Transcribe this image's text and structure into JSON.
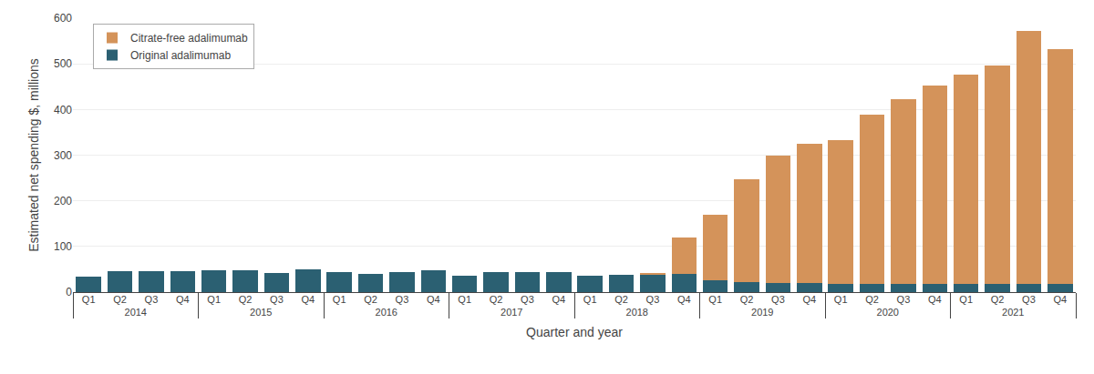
{
  "chart_data": {
    "type": "bar",
    "stacked": true,
    "categories": [
      "Q1",
      "Q2",
      "Q3",
      "Q4",
      "Q1",
      "Q2",
      "Q3",
      "Q4",
      "Q1",
      "Q2",
      "Q3",
      "Q4",
      "Q1",
      "Q2",
      "Q3",
      "Q4",
      "Q1",
      "Q2",
      "Q3",
      "Q4",
      "Q1",
      "Q2",
      "Q3",
      "Q4",
      "Q1",
      "Q2",
      "Q3",
      "Q4",
      "Q1",
      "Q2",
      "Q3",
      "Q4"
    ],
    "groups": [
      "2014",
      "2014",
      "2014",
      "2014",
      "2015",
      "2015",
      "2015",
      "2015",
      "2016",
      "2016",
      "2016",
      "2016",
      "2017",
      "2017",
      "2017",
      "2017",
      "2018",
      "2018",
      "2018",
      "2018",
      "2019",
      "2019",
      "2019",
      "2019",
      "2020",
      "2020",
      "2020",
      "2020",
      "2021",
      "2021",
      "2021",
      "2021"
    ],
    "series": [
      {
        "name": "Original adalimumab",
        "color": "#2b6072",
        "values": [
          33,
          45,
          46,
          45,
          48,
          47,
          42,
          49,
          44,
          40,
          43,
          47,
          36,
          44,
          43,
          43,
          36,
          37,
          37,
          40,
          25,
          22,
          20,
          20,
          18,
          18,
          18,
          18,
          17,
          17,
          17,
          17
        ]
      },
      {
        "name": "Citrate-free adalimumab",
        "color": "#d4935a",
        "values": [
          0,
          0,
          0,
          0,
          0,
          0,
          0,
          0,
          0,
          0,
          0,
          0,
          0,
          0,
          0,
          0,
          0,
          0,
          5,
          80,
          145,
          225,
          280,
          305,
          315,
          370,
          405,
          435,
          460,
          480,
          555,
          515
        ]
      }
    ],
    "x_label": "Quarter and year",
    "y_label": "Estimated net spending $, millions",
    "ylim": [
      0,
      600
    ],
    "yticks": [
      0,
      100,
      200,
      300,
      400,
      500,
      600
    ],
    "grid": true,
    "legend": "upper left"
  }
}
